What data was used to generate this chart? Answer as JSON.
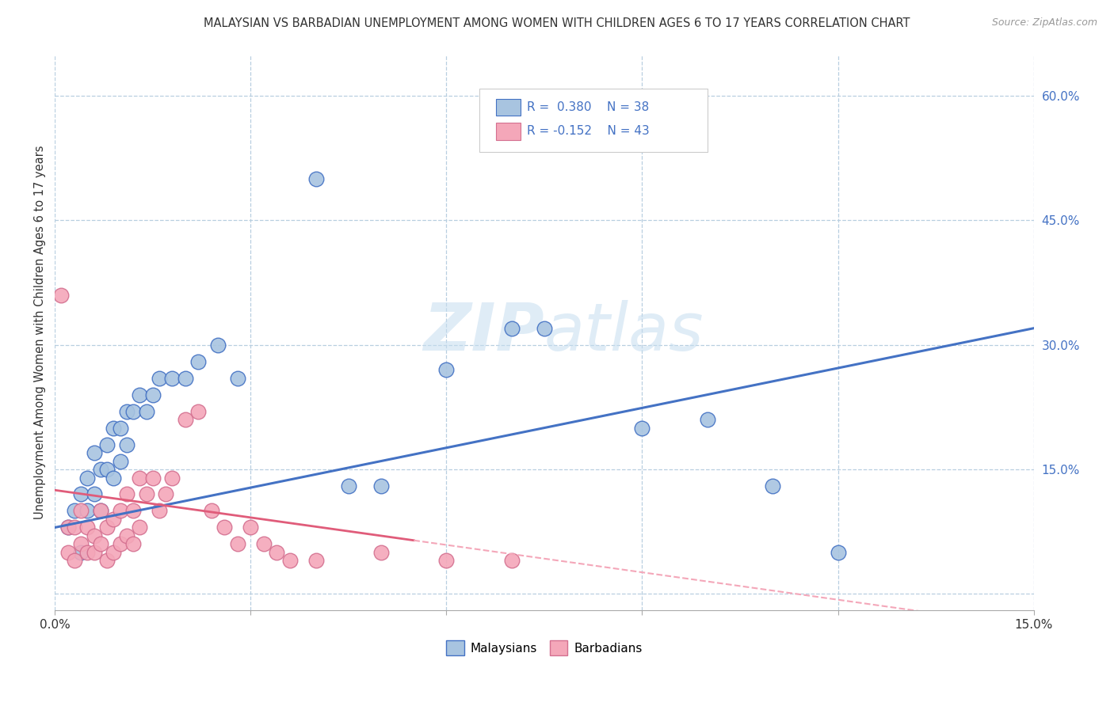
{
  "title": "MALAYSIAN VS BARBADIAN UNEMPLOYMENT AMONG WOMEN WITH CHILDREN AGES 6 TO 17 YEARS CORRELATION CHART",
  "source": "Source: ZipAtlas.com",
  "ylabel": "Unemployment Among Women with Children Ages 6 to 17 years",
  "xlim": [
    0.0,
    0.15
  ],
  "ylim": [
    -0.02,
    0.65
  ],
  "xticks": [
    0.0,
    0.03,
    0.06,
    0.09,
    0.12,
    0.15
  ],
  "xtick_labels": [
    "0.0%",
    "",
    "",
    "",
    "",
    "15.0%"
  ],
  "yticks_right": [
    0.0,
    0.15,
    0.3,
    0.45,
    0.6
  ],
  "ytick_right_labels": [
    "",
    "15.0%",
    "30.0%",
    "45.0%",
    "60.0%"
  ],
  "malaysian_R": 0.38,
  "malaysian_N": 38,
  "barbadian_R": -0.152,
  "barbadian_N": 43,
  "malaysian_color": "#a8c4e0",
  "barbadian_color": "#f4a7b9",
  "malaysian_line_color": "#4472c4",
  "barbadian_line_solid_color": "#e05c7a",
  "barbadian_line_dash_color": "#f4a7b9",
  "background_color": "#ffffff",
  "grid_color": "#b8cfe0",
  "watermark_color": "#d8eaf5",
  "malaysian_x": [
    0.002,
    0.003,
    0.004,
    0.004,
    0.005,
    0.005,
    0.006,
    0.006,
    0.007,
    0.007,
    0.008,
    0.008,
    0.009,
    0.009,
    0.01,
    0.01,
    0.011,
    0.011,
    0.012,
    0.013,
    0.014,
    0.015,
    0.016,
    0.018,
    0.02,
    0.022,
    0.025,
    0.028,
    0.04,
    0.045,
    0.05,
    0.06,
    0.07,
    0.075,
    0.09,
    0.1,
    0.11,
    0.12
  ],
  "malaysian_y": [
    0.08,
    0.1,
    0.05,
    0.12,
    0.1,
    0.14,
    0.12,
    0.17,
    0.15,
    0.1,
    0.15,
    0.18,
    0.14,
    0.2,
    0.16,
    0.2,
    0.18,
    0.22,
    0.22,
    0.24,
    0.22,
    0.24,
    0.26,
    0.26,
    0.26,
    0.28,
    0.3,
    0.26,
    0.5,
    0.13,
    0.13,
    0.27,
    0.32,
    0.32,
    0.2,
    0.21,
    0.13,
    0.05
  ],
  "barbadian_x": [
    0.001,
    0.002,
    0.002,
    0.003,
    0.003,
    0.004,
    0.004,
    0.005,
    0.005,
    0.006,
    0.006,
    0.007,
    0.007,
    0.008,
    0.008,
    0.009,
    0.009,
    0.01,
    0.01,
    0.011,
    0.011,
    0.012,
    0.012,
    0.013,
    0.013,
    0.014,
    0.015,
    0.016,
    0.017,
    0.018,
    0.02,
    0.022,
    0.024,
    0.026,
    0.028,
    0.03,
    0.032,
    0.034,
    0.036,
    0.04,
    0.05,
    0.06,
    0.07
  ],
  "barbadian_y": [
    0.36,
    0.05,
    0.08,
    0.04,
    0.08,
    0.06,
    0.1,
    0.05,
    0.08,
    0.05,
    0.07,
    0.06,
    0.1,
    0.04,
    0.08,
    0.05,
    0.09,
    0.06,
    0.1,
    0.07,
    0.12,
    0.06,
    0.1,
    0.08,
    0.14,
    0.12,
    0.14,
    0.1,
    0.12,
    0.14,
    0.21,
    0.22,
    0.1,
    0.08,
    0.06,
    0.08,
    0.06,
    0.05,
    0.04,
    0.04,
    0.05,
    0.04,
    0.04
  ],
  "mal_line_x": [
    0.0,
    0.15
  ],
  "mal_line_y": [
    0.08,
    0.32
  ],
  "bar_line_x0": 0.0,
  "bar_line_y0": 0.125,
  "bar_line_x_solid_end": 0.055,
  "bar_line_x_dash_end": 0.15,
  "bar_line_slope": -1.1
}
